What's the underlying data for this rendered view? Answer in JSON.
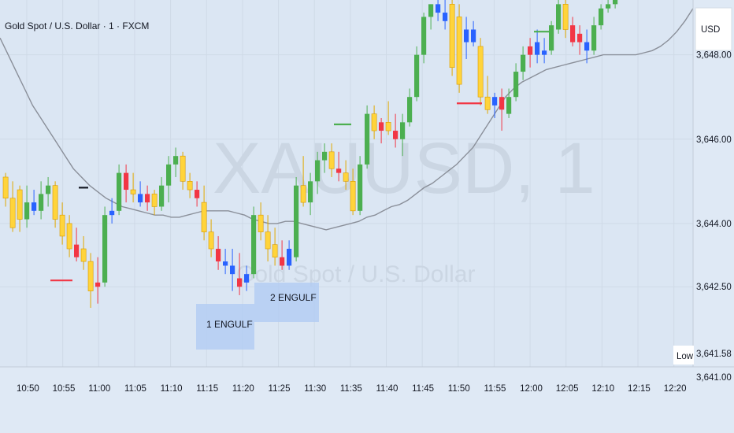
{
  "header": {
    "title": "Gold Spot / U.S. Dollar · 1 · FXCM"
  },
  "watermark": {
    "symbol": "XAUUSD, 1",
    "description": "Gold Spot / U.S. Dollar"
  },
  "price_axis": {
    "currency": "USD",
    "low_label": "Low",
    "low_value": "3,641.58",
    "bottom_value": "3,641.00"
  },
  "annotations": [
    {
      "text": "1 ENGULF"
    },
    {
      "text": "2 ENGULF"
    }
  ],
  "colors": {
    "bull": "#4caf50",
    "bear_yellow": "#ffd43b",
    "bear_red": "#f23645",
    "blue": "#2962ff",
    "ma": "#8a8f99",
    "box": "#b4ccf2",
    "background": "#dfe9f5"
  },
  "chart_data": {
    "type": "candlestick",
    "symbol": "XAUUSD",
    "timeframe": "1",
    "ylim": [
      3640.6,
      3649.3
    ],
    "yticks": [
      {
        "value": 3648.0,
        "label": "3,648.00"
      },
      {
        "value": 3646.0,
        "label": "3,646.00"
      },
      {
        "value": 3644.0,
        "label": "3,644.00"
      },
      {
        "value": 3642.5,
        "label": "3,642.50"
      }
    ],
    "xticks": [
      "10:50",
      "10:55",
      "11:00",
      "11:05",
      "11:10",
      "11:15",
      "11:20",
      "11:25",
      "11:30",
      "11:35",
      "11:40",
      "11:45",
      "11:50",
      "11:55",
      "12:00",
      "12:05",
      "12:10",
      "12:15",
      "12:20"
    ],
    "candles": [
      {
        "o": 3645.1,
        "h": 3645.2,
        "l": 3644.4,
        "c": 3644.6,
        "k": "y"
      },
      {
        "o": 3644.6,
        "h": 3645.0,
        "l": 3643.8,
        "c": 3643.9,
        "k": "y"
      },
      {
        "o": 3644.8,
        "h": 3644.9,
        "l": 3643.8,
        "c": 3644.1,
        "k": "y"
      },
      {
        "o": 3644.1,
        "h": 3644.9,
        "l": 3643.9,
        "c": 3644.5,
        "k": "g"
      },
      {
        "o": 3644.5,
        "h": 3644.8,
        "l": 3644.2,
        "c": 3644.3,
        "k": "b"
      },
      {
        "o": 3644.3,
        "h": 3645.0,
        "l": 3644.1,
        "c": 3644.7,
        "k": "g"
      },
      {
        "o": 3644.7,
        "h": 3645.1,
        "l": 3644.4,
        "c": 3644.9,
        "k": "g"
      },
      {
        "o": 3644.9,
        "h": 3645.0,
        "l": 3643.9,
        "c": 3644.1,
        "k": "y"
      },
      {
        "o": 3644.2,
        "h": 3644.5,
        "l": 3643.5,
        "c": 3643.7,
        "k": "y"
      },
      {
        "o": 3644.0,
        "h": 3644.2,
        "l": 3643.2,
        "c": 3643.4,
        "k": "y"
      },
      {
        "o": 3643.5,
        "h": 3643.9,
        "l": 3643.1,
        "c": 3643.2,
        "k": "r"
      },
      {
        "o": 3643.4,
        "h": 3643.7,
        "l": 3642.9,
        "c": 3643.1,
        "k": "y"
      },
      {
        "o": 3643.1,
        "h": 3643.3,
        "l": 3642.0,
        "c": 3642.4,
        "k": "y"
      },
      {
        "o": 3642.6,
        "h": 3643.2,
        "l": 3642.1,
        "c": 3642.5,
        "k": "r"
      },
      {
        "o": 3642.6,
        "h": 3644.4,
        "l": 3642.5,
        "c": 3644.2,
        "k": "g"
      },
      {
        "o": 3644.2,
        "h": 3644.6,
        "l": 3644.0,
        "c": 3644.3,
        "k": "b"
      },
      {
        "o": 3644.3,
        "h": 3645.4,
        "l": 3644.2,
        "c": 3645.2,
        "k": "g"
      },
      {
        "o": 3645.2,
        "h": 3645.4,
        "l": 3644.5,
        "c": 3644.8,
        "k": "r"
      },
      {
        "o": 3644.8,
        "h": 3645.2,
        "l": 3644.5,
        "c": 3644.7,
        "k": "y"
      },
      {
        "o": 3644.7,
        "h": 3645.0,
        "l": 3644.4,
        "c": 3644.5,
        "k": "b"
      },
      {
        "o": 3644.5,
        "h": 3644.9,
        "l": 3644.3,
        "c": 3644.7,
        "k": "r"
      },
      {
        "o": 3644.7,
        "h": 3644.8,
        "l": 3644.2,
        "c": 3644.4,
        "k": "y"
      },
      {
        "o": 3644.4,
        "h": 3645.1,
        "l": 3644.3,
        "c": 3644.9,
        "k": "g"
      },
      {
        "o": 3644.9,
        "h": 3645.6,
        "l": 3644.5,
        "c": 3645.4,
        "k": "g"
      },
      {
        "o": 3645.4,
        "h": 3645.8,
        "l": 3645.1,
        "c": 3645.6,
        "k": "g"
      },
      {
        "o": 3645.6,
        "h": 3645.7,
        "l": 3644.8,
        "c": 3645.0,
        "k": "y"
      },
      {
        "o": 3645.0,
        "h": 3645.2,
        "l": 3644.6,
        "c": 3644.8,
        "k": "y"
      },
      {
        "o": 3644.8,
        "h": 3645.0,
        "l": 3644.4,
        "c": 3644.6,
        "k": "r"
      },
      {
        "o": 3644.5,
        "h": 3644.9,
        "l": 3643.6,
        "c": 3643.8,
        "k": "y"
      },
      {
        "o": 3643.8,
        "h": 3644.1,
        "l": 3643.2,
        "c": 3643.4,
        "k": "y"
      },
      {
        "o": 3643.4,
        "h": 3643.7,
        "l": 3642.9,
        "c": 3643.1,
        "k": "r"
      },
      {
        "o": 3643.1,
        "h": 3643.4,
        "l": 3642.8,
        "c": 3643.0,
        "k": "b"
      },
      {
        "o": 3643.0,
        "h": 3643.4,
        "l": 3642.4,
        "c": 3642.8,
        "k": "b"
      },
      {
        "o": 3642.7,
        "h": 3643.3,
        "l": 3642.3,
        "c": 3642.5,
        "k": "r"
      },
      {
        "o": 3642.6,
        "h": 3643.0,
        "l": 3642.4,
        "c": 3642.8,
        "k": "b"
      },
      {
        "o": 3642.8,
        "h": 3644.4,
        "l": 3642.7,
        "c": 3644.2,
        "k": "g"
      },
      {
        "o": 3644.2,
        "h": 3644.5,
        "l": 3643.6,
        "c": 3643.8,
        "k": "y"
      },
      {
        "o": 3643.8,
        "h": 3644.2,
        "l": 3643.1,
        "c": 3643.4,
        "k": "y"
      },
      {
        "o": 3643.5,
        "h": 3643.9,
        "l": 3643.0,
        "c": 3643.2,
        "k": "y"
      },
      {
        "o": 3643.2,
        "h": 3643.6,
        "l": 3642.9,
        "c": 3643.0,
        "k": "r"
      },
      {
        "o": 3643.0,
        "h": 3643.6,
        "l": 3642.9,
        "c": 3643.4,
        "k": "b"
      },
      {
        "o": 3643.2,
        "h": 3645.1,
        "l": 3643.1,
        "c": 3644.9,
        "k": "g"
      },
      {
        "o": 3644.9,
        "h": 3645.6,
        "l": 3644.4,
        "c": 3644.5,
        "k": "y"
      },
      {
        "o": 3644.5,
        "h": 3645.2,
        "l": 3644.2,
        "c": 3645.0,
        "k": "g"
      },
      {
        "o": 3645.0,
        "h": 3645.7,
        "l": 3644.7,
        "c": 3645.5,
        "k": "g"
      },
      {
        "o": 3645.5,
        "h": 3645.9,
        "l": 3645.2,
        "c": 3645.7,
        "k": "g"
      },
      {
        "o": 3645.7,
        "h": 3645.9,
        "l": 3645.1,
        "c": 3645.3,
        "k": "y"
      },
      {
        "o": 3645.3,
        "h": 3645.7,
        "l": 3645.0,
        "c": 3645.2,
        "k": "r"
      },
      {
        "o": 3645.2,
        "h": 3645.5,
        "l": 3644.8,
        "c": 3645.0,
        "k": "y"
      },
      {
        "o": 3645.0,
        "h": 3645.3,
        "l": 3644.2,
        "c": 3644.3,
        "k": "y"
      },
      {
        "o": 3644.3,
        "h": 3645.6,
        "l": 3644.2,
        "c": 3645.4,
        "k": "g"
      },
      {
        "o": 3645.4,
        "h": 3646.8,
        "l": 3645.3,
        "c": 3646.6,
        "k": "g"
      },
      {
        "o": 3646.6,
        "h": 3646.8,
        "l": 3646.0,
        "c": 3646.2,
        "k": "y"
      },
      {
        "o": 3646.2,
        "h": 3646.5,
        "l": 3645.9,
        "c": 3646.4,
        "k": "r"
      },
      {
        "o": 3646.4,
        "h": 3646.9,
        "l": 3646.1,
        "c": 3646.2,
        "k": "y"
      },
      {
        "o": 3646.2,
        "h": 3646.6,
        "l": 3645.8,
        "c": 3646.0,
        "k": "r"
      },
      {
        "o": 3646.0,
        "h": 3646.6,
        "l": 3645.6,
        "c": 3646.4,
        "k": "g"
      },
      {
        "o": 3646.4,
        "h": 3647.2,
        "l": 3646.3,
        "c": 3647.0,
        "k": "g"
      },
      {
        "o": 3647.0,
        "h": 3648.2,
        "l": 3646.9,
        "c": 3648.0,
        "k": "g"
      },
      {
        "o": 3648.0,
        "h": 3649.0,
        "l": 3647.8,
        "c": 3648.9,
        "k": "g"
      },
      {
        "o": 3648.9,
        "h": 3649.2,
        "l": 3648.6,
        "c": 3649.2,
        "k": "g"
      },
      {
        "o": 3649.2,
        "h": 3649.3,
        "l": 3648.8,
        "c": 3649.0,
        "k": "b"
      },
      {
        "o": 3649.0,
        "h": 3649.3,
        "l": 3648.6,
        "c": 3648.8,
        "k": "b"
      },
      {
        "o": 3649.2,
        "h": 3649.3,
        "l": 3647.5,
        "c": 3647.7,
        "k": "y"
      },
      {
        "o": 3648.9,
        "h": 3649.2,
        "l": 3647.1,
        "c": 3647.3,
        "k": "y"
      },
      {
        "o": 3648.3,
        "h": 3648.9,
        "l": 3647.9,
        "c": 3648.6,
        "k": "b"
      },
      {
        "o": 3648.6,
        "h": 3648.8,
        "l": 3648.2,
        "c": 3648.3,
        "k": "b"
      },
      {
        "o": 3648.2,
        "h": 3648.4,
        "l": 3646.8,
        "c": 3647.0,
        "k": "y"
      },
      {
        "o": 3647.0,
        "h": 3647.5,
        "l": 3646.6,
        "c": 3646.7,
        "k": "y"
      },
      {
        "o": 3646.8,
        "h": 3647.1,
        "l": 3646.5,
        "c": 3647.0,
        "k": "b"
      },
      {
        "o": 3647.0,
        "h": 3647.2,
        "l": 3646.2,
        "c": 3646.7,
        "k": "r"
      },
      {
        "o": 3646.6,
        "h": 3647.2,
        "l": 3646.5,
        "c": 3647.0,
        "k": "g"
      },
      {
        "o": 3647.0,
        "h": 3647.8,
        "l": 3646.9,
        "c": 3647.6,
        "k": "g"
      },
      {
        "o": 3647.6,
        "h": 3648.2,
        "l": 3647.4,
        "c": 3648.0,
        "k": "g"
      },
      {
        "o": 3648.0,
        "h": 3648.4,
        "l": 3647.7,
        "c": 3648.2,
        "k": "r"
      },
      {
        "o": 3648.3,
        "h": 3648.6,
        "l": 3647.8,
        "c": 3648.0,
        "k": "b"
      },
      {
        "o": 3648.0,
        "h": 3648.4,
        "l": 3647.8,
        "c": 3648.1,
        "k": "b"
      },
      {
        "o": 3648.1,
        "h": 3648.8,
        "l": 3648.0,
        "c": 3648.7,
        "k": "g"
      },
      {
        "o": 3648.6,
        "h": 3649.3,
        "l": 3648.5,
        "c": 3649.2,
        "k": "g"
      },
      {
        "o": 3649.2,
        "h": 3649.3,
        "l": 3648.4,
        "c": 3648.6,
        "k": "y"
      },
      {
        "o": 3648.7,
        "h": 3648.9,
        "l": 3648.2,
        "c": 3648.3,
        "k": "r"
      },
      {
        "o": 3648.3,
        "h": 3648.7,
        "l": 3648.0,
        "c": 3648.5,
        "k": "r"
      },
      {
        "o": 3648.3,
        "h": 3648.6,
        "l": 3647.8,
        "c": 3648.1,
        "k": "b"
      },
      {
        "o": 3648.1,
        "h": 3648.9,
        "l": 3648.0,
        "c": 3648.7,
        "k": "g"
      },
      {
        "o": 3648.7,
        "h": 3649.2,
        "l": 3648.6,
        "c": 3649.1,
        "k": "g"
      },
      {
        "o": 3649.1,
        "h": 3649.3,
        "l": 3649.0,
        "c": 3649.2,
        "k": "g"
      },
      {
        "o": 3649.2,
        "h": 3649.3,
        "l": 3649.1,
        "c": 3649.3,
        "k": "g"
      }
    ],
    "moving_average": [
      3648.4,
      3648.0,
      3647.6,
      3647.2,
      3646.8,
      3646.5,
      3646.2,
      3645.9,
      3645.6,
      3645.3,
      3645.1,
      3644.9,
      3644.75,
      3644.6,
      3644.5,
      3644.4,
      3644.35,
      3644.3,
      3644.25,
      3644.2,
      3644.2,
      3644.15,
      3644.15,
      3644.2,
      3644.25,
      3644.3,
      3644.3,
      3644.3,
      3644.3,
      3644.25,
      3644.2,
      3644.1,
      3644.05,
      3644.0,
      3644.0,
      3644.05,
      3644.05,
      3644.0,
      3643.95,
      3643.9,
      3643.85,
      3643.9,
      3643.95,
      3644.0,
      3644.05,
      3644.15,
      3644.2,
      3644.3,
      3644.4,
      3644.45,
      3644.55,
      3644.7,
      3644.85,
      3644.95,
      3645.1,
      3645.25,
      3645.4,
      3645.6,
      3645.8,
      3646.1,
      3646.4,
      3646.7,
      3647.0,
      3647.2,
      3647.35,
      3647.45,
      3647.55,
      3647.65,
      3647.7,
      3647.75,
      3647.8,
      3647.85,
      3647.9,
      3647.95,
      3648.0,
      3648.0,
      3648.0,
      3648.0,
      3648.0,
      3648.05,
      3648.1,
      3648.2,
      3648.35,
      3648.55,
      3648.8,
      3649.1
    ]
  }
}
